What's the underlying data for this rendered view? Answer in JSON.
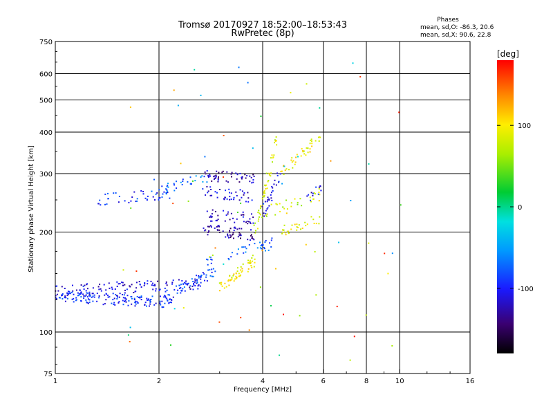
{
  "header": {
    "title_line1": "Tromsø 20170927 18:52:00–18:53:43",
    "title_line2": "RwPretec (8p)"
  },
  "stats": {
    "heading": "Phases",
    "line_o": "mean, sd,O: -86.3, 20.6",
    "line_x": "mean, sd,X:  90.6, 22.8"
  },
  "colorbar": {
    "unit": "[deg]",
    "ticks": [
      {
        "value": 100,
        "label": "100"
      },
      {
        "value": 0,
        "label": "0"
      },
      {
        "value": -100,
        "label": "-100"
      }
    ],
    "range": [
      -180,
      180
    ]
  },
  "chart_data": {
    "type": "scatter",
    "title": "Tromsø 20170927 18:52:00–18:53:43",
    "subtitle": "RwPretec (8p)",
    "xlabel": "Frequency [MHz]",
    "ylabel": "Stationary phase Virtual Height [km]",
    "xscale": "log",
    "yscale": "log",
    "xlim": [
      1,
      16
    ],
    "ylim": [
      75,
      750
    ],
    "xticks": [
      {
        "value": 1,
        "label": "1"
      },
      {
        "value": 2,
        "label": "2"
      },
      {
        "value": 4,
        "label": "4"
      },
      {
        "value": 6,
        "label": "6"
      },
      {
        "value": 8,
        "label": "8"
      },
      {
        "value": 10,
        "label": "10"
      },
      {
        "value": 16,
        "label": "16"
      }
    ],
    "xgrid": [
      2,
      4,
      6,
      8,
      10
    ],
    "yticks": [
      {
        "value": 75,
        "label": "75"
      },
      {
        "value": 100,
        "label": "100"
      },
      {
        "value": 200,
        "label": "200"
      },
      {
        "value": 300,
        "label": "300"
      },
      {
        "value": 400,
        "label": "400"
      },
      {
        "value": 500,
        "label": "500"
      },
      {
        "value": 600,
        "label": "600"
      },
      {
        "value": 750,
        "label": "750"
      }
    ],
    "ygrid": [
      100,
      200,
      300,
      400,
      500,
      600
    ],
    "grid": true,
    "color_encoding": "phase in degrees (-180 to 180, rainbow colormap)",
    "traces": [
      {
        "x_range": [
          1.0,
          2.2
        ],
        "h_range": [
          128,
          123
        ],
        "phase": -95,
        "count": 160
      },
      {
        "x_range": [
          1.0,
          2.7
        ],
        "h_range": [
          133,
          140
        ],
        "phase": -110,
        "count": 120
      },
      {
        "x_range": [
          1.3,
          2.2
        ],
        "h_range": [
          250,
          262
        ],
        "phase": -90,
        "count": 45
      },
      {
        "x_range": [
          2.0,
          2.9
        ],
        "h_range": [
          128,
          150
        ],
        "phase": -85,
        "count": 60
      },
      {
        "x_range": [
          2.0,
          2.8
        ],
        "h_range": [
          265,
          295
        ],
        "phase": -70,
        "count": 30
      },
      {
        "x_range": [
          2.7,
          3.8
        ],
        "h_range": [
          205,
          195
        ],
        "phase": -130,
        "count": 60
      },
      {
        "x_range": [
          2.7,
          3.8
        ],
        "h_range": [
          225,
          220
        ],
        "phase": -120,
        "count": 40
      },
      {
        "x_range": [
          2.7,
          3.8
        ],
        "h_range": [
          265,
          255
        ],
        "phase": -115,
        "count": 40
      },
      {
        "x_range": [
          2.7,
          3.8
        ],
        "h_range": [
          295,
          290
        ],
        "phase": -125,
        "count": 50
      },
      {
        "x_range": [
          2.7,
          4.3
        ],
        "h_range": [
          160,
          185
        ],
        "phase": -75,
        "count": 40
      },
      {
        "x_range": [
          3.0,
          3.8
        ],
        "h_range": [
          135,
          165
        ],
        "phase": 95,
        "count": 60
      },
      {
        "x_range": [
          3.8,
          4.4
        ],
        "h_range": [
          200,
          380
        ],
        "phase": 85,
        "count": 50
      },
      {
        "x_range": [
          4.0,
          4.5
        ],
        "h_range": [
          230,
          300
        ],
        "phase": -105,
        "count": 30
      },
      {
        "x_range": [
          4.5,
          5.9
        ],
        "h_range": [
          200,
          220
        ],
        "phase": 90,
        "count": 30
      },
      {
        "x_range": [
          4.5,
          5.9
        ],
        "h_range": [
          300,
          390
        ],
        "phase": 95,
        "count": 40
      },
      {
        "x_range": [
          4.0,
          5.9
        ],
        "h_range": [
          228,
          260
        ],
        "phase": 75,
        "count": 30
      },
      {
        "x_range": [
          5.4,
          6.0
        ],
        "h_range": [
          255,
          270
        ],
        "phase": -110,
        "count": 12
      }
    ]
  }
}
